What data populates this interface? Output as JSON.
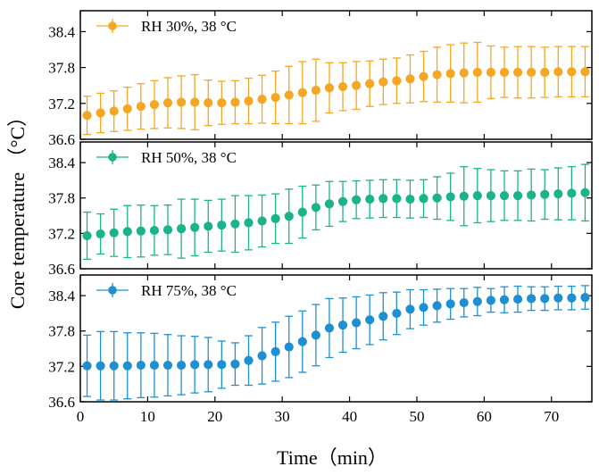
{
  "chart_data": {
    "type": "scatter",
    "xlabel": "Time（min）",
    "ylabel": "Core temperature （°C）",
    "xlim": [
      0,
      76
    ],
    "xticks": [
      0,
      10,
      20,
      30,
      40,
      50,
      60,
      70
    ],
    "ylim": [
      36.6,
      38.75
    ],
    "yticks": [
      36.6,
      37.2,
      37.8,
      38.4
    ],
    "grid": false,
    "legend_placement": "top-left",
    "panels": [
      {
        "name": "RH 30%, 38 °C",
        "color": "#F5A623",
        "x": [
          1,
          3,
          5,
          7,
          9,
          11,
          13,
          15,
          17,
          19,
          21,
          23,
          25,
          27,
          29,
          31,
          33,
          35,
          37,
          39,
          41,
          43,
          45,
          47,
          49,
          51,
          53,
          55,
          57,
          59,
          61,
          63,
          65,
          67,
          69,
          71,
          73,
          75
        ],
        "y": [
          37.0,
          37.04,
          37.07,
          37.11,
          37.15,
          37.18,
          37.21,
          37.22,
          37.22,
          37.21,
          37.21,
          37.22,
          37.24,
          37.27,
          37.3,
          37.34,
          37.38,
          37.42,
          37.46,
          37.48,
          37.5,
          37.53,
          37.56,
          37.58,
          37.61,
          37.65,
          37.68,
          37.7,
          37.71,
          37.72,
          37.72,
          37.72,
          37.72,
          37.72,
          37.72,
          37.73,
          37.73,
          37.73
        ],
        "err": [
          0.32,
          0.33,
          0.34,
          0.36,
          0.38,
          0.4,
          0.42,
          0.44,
          0.46,
          0.38,
          0.36,
          0.36,
          0.38,
          0.4,
          0.44,
          0.48,
          0.52,
          0.52,
          0.42,
          0.4,
          0.4,
          0.38,
          0.38,
          0.38,
          0.4,
          0.42,
          0.46,
          0.48,
          0.5,
          0.5,
          0.44,
          0.42,
          0.43,
          0.43,
          0.42,
          0.42,
          0.42,
          0.42
        ]
      },
      {
        "name": "RH 50%, 38 °C",
        "color": "#1BB38A",
        "x": [
          1,
          3,
          5,
          7,
          9,
          11,
          13,
          15,
          17,
          19,
          21,
          23,
          25,
          27,
          29,
          31,
          33,
          35,
          37,
          39,
          41,
          43,
          45,
          47,
          49,
          51,
          53,
          55,
          57,
          59,
          61,
          63,
          65,
          67,
          69,
          71,
          73,
          75
        ],
        "y": [
          37.16,
          37.19,
          37.21,
          37.23,
          37.24,
          37.25,
          37.26,
          37.28,
          37.3,
          37.32,
          37.34,
          37.36,
          37.38,
          37.41,
          37.45,
          37.49,
          37.56,
          37.64,
          37.7,
          37.74,
          37.77,
          37.78,
          37.79,
          37.79,
          37.78,
          37.79,
          37.8,
          37.82,
          37.83,
          37.84,
          37.84,
          37.84,
          37.84,
          37.85,
          37.86,
          37.87,
          37.88,
          37.89
        ],
        "err": [
          0.4,
          0.34,
          0.4,
          0.44,
          0.44,
          0.42,
          0.42,
          0.5,
          0.48,
          0.44,
          0.44,
          0.48,
          0.46,
          0.44,
          0.42,
          0.46,
          0.44,
          0.38,
          0.38,
          0.34,
          0.32,
          0.32,
          0.32,
          0.32,
          0.32,
          0.32,
          0.36,
          0.4,
          0.5,
          0.46,
          0.44,
          0.42,
          0.42,
          0.44,
          0.42,
          0.44,
          0.45,
          0.48
        ]
      },
      {
        "name": "RH 75%, 38 °C",
        "color": "#1E90D2",
        "x": [
          1,
          3,
          5,
          7,
          9,
          11,
          13,
          15,
          17,
          19,
          21,
          23,
          25,
          27,
          29,
          31,
          33,
          35,
          37,
          39,
          41,
          43,
          45,
          47,
          49,
          51,
          53,
          55,
          57,
          59,
          61,
          63,
          65,
          67,
          69,
          71,
          73,
          75
        ],
        "y": [
          37.21,
          37.21,
          37.21,
          37.21,
          37.22,
          37.22,
          37.22,
          37.22,
          37.23,
          37.23,
          37.23,
          37.24,
          37.3,
          37.38,
          37.45,
          37.53,
          37.62,
          37.73,
          37.85,
          37.9,
          37.94,
          37.99,
          38.05,
          38.1,
          38.17,
          38.2,
          38.23,
          38.26,
          38.28,
          38.3,
          38.32,
          38.33,
          38.34,
          38.35,
          38.35,
          38.36,
          38.36,
          38.37
        ],
        "err": [
          0.52,
          0.58,
          0.58,
          0.56,
          0.55,
          0.54,
          0.52,
          0.5,
          0.48,
          0.46,
          0.4,
          0.36,
          0.42,
          0.48,
          0.5,
          0.52,
          0.52,
          0.52,
          0.5,
          0.46,
          0.44,
          0.42,
          0.4,
          0.36,
          0.33,
          0.3,
          0.28,
          0.26,
          0.24,
          0.24,
          0.2,
          0.22,
          0.22,
          0.2,
          0.2,
          0.2,
          0.2,
          0.2
        ]
      }
    ]
  }
}
